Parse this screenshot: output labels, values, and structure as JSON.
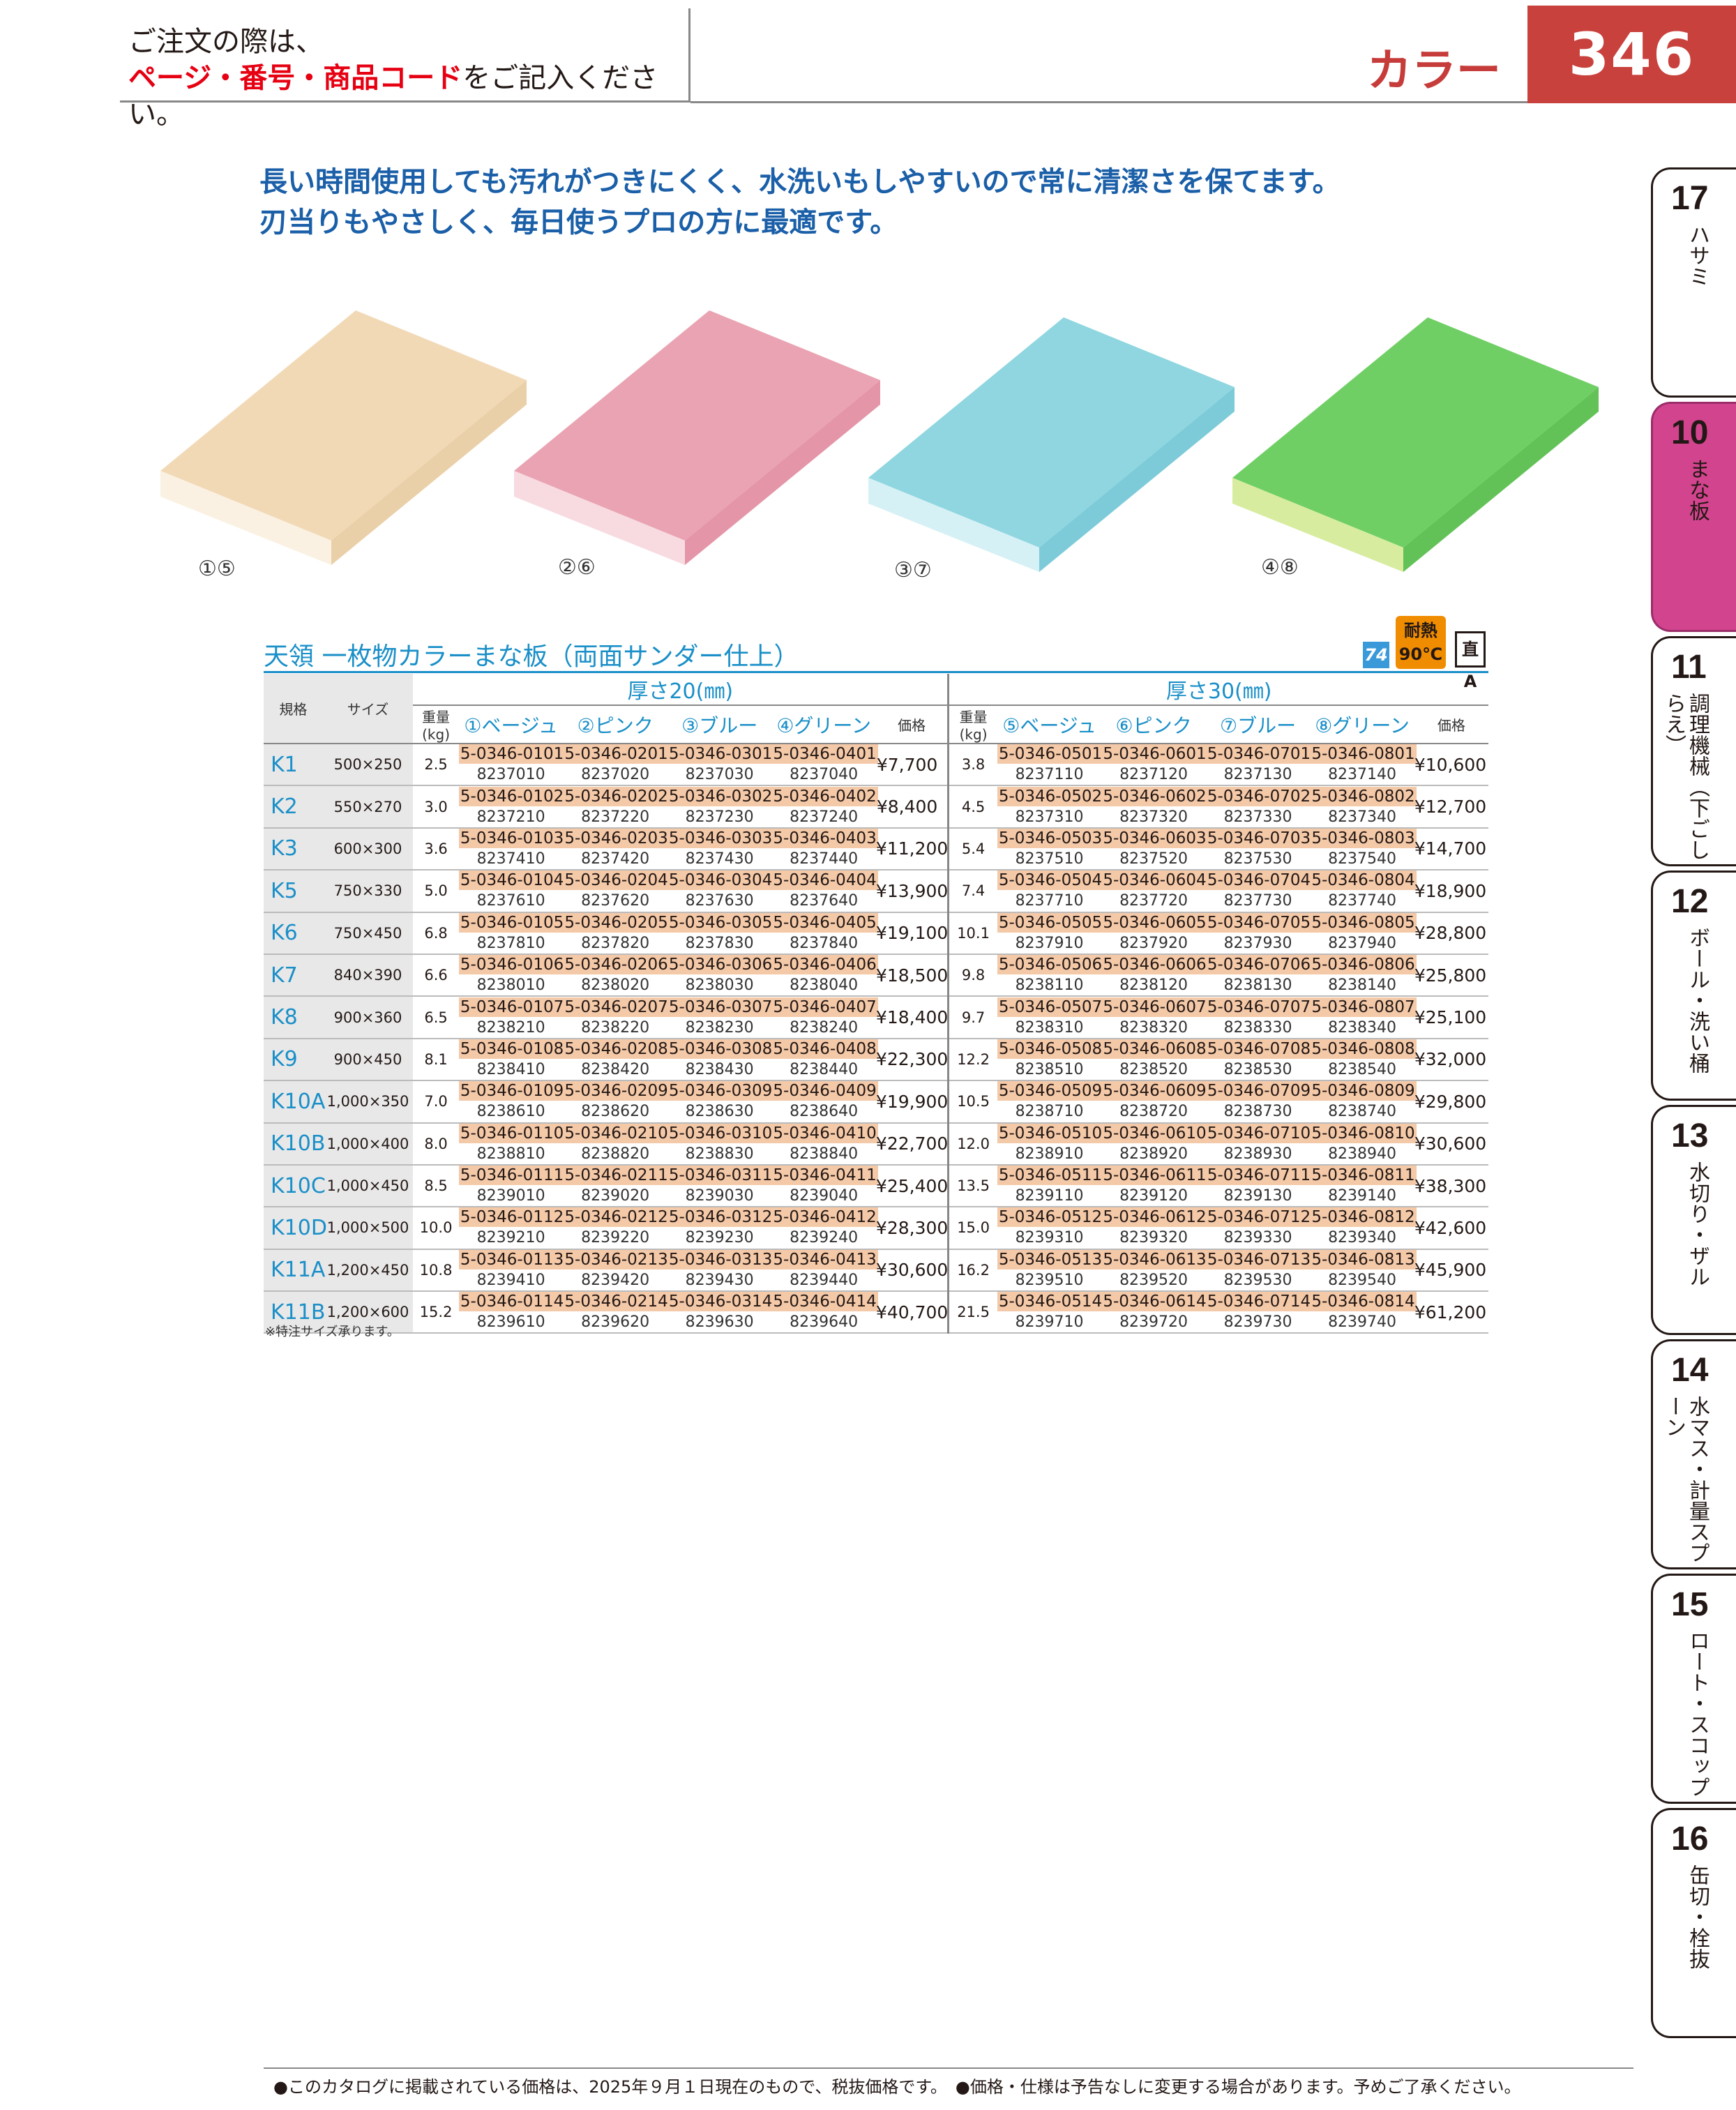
{
  "header": {
    "notice_line1": "ご注文の際は、",
    "notice_red": "ページ・番号・商品コード",
    "notice_rest": "をご記入ください。",
    "category": "カラー",
    "page_number": "346"
  },
  "description": {
    "line1": "長い時間使用しても汚れがつきにくく、水洗いもしやすいので常に清潔さを保てます。",
    "line2": "刃当りもやさしく、毎日使うプロの方に最適です。"
  },
  "images": [
    {
      "label": "①⑤",
      "color": "#f2d9b6"
    },
    {
      "label": "②⑥",
      "color": "#eaa3b2"
    },
    {
      "label": "③⑦",
      "color": "#8fd6e0"
    },
    {
      "label": "④⑧",
      "color": "#6fcf64"
    }
  ],
  "badges": {
    "category_code": "74",
    "heat_line1": "耐熱",
    "heat_line2": "90℃",
    "direct": "直A"
  },
  "product_title": "天領 一枚物カラーまな板（両面サンダー仕上）",
  "table": {
    "group_20": "厚さ20(㎜)",
    "group_30": "厚さ30(㎜)",
    "h_model": "規格",
    "h_size": "サイズ",
    "h_weight": "重量(kg)",
    "h_price": "価格",
    "h_c1": "①ベージュ",
    "h_c2": "②ピンク",
    "h_c3": "③ブルー",
    "h_c4": "④グリーン",
    "h_c5": "⑤ベージュ",
    "h_c6": "⑥ピンク",
    "h_c7": "⑦ブルー",
    "h_c8": "⑧グリーン",
    "rows": [
      {
        "model": "K1",
        "size": "500×250",
        "w20": "2.5",
        "c": [
          [
            "5-0346-0101",
            "8237010"
          ],
          [
            "5-0346-0201",
            "8237020"
          ],
          [
            "5-0346-0301",
            "8237030"
          ],
          [
            "5-0346-0401",
            "8237040"
          ]
        ],
        "p20": "¥7,700",
        "w30": "3.8",
        "d": [
          [
            "5-0346-0501",
            "8237110"
          ],
          [
            "5-0346-0601",
            "8237120"
          ],
          [
            "5-0346-0701",
            "8237130"
          ],
          [
            "5-0346-0801",
            "8237140"
          ]
        ],
        "p30": "¥10,600"
      },
      {
        "model": "K2",
        "size": "550×270",
        "w20": "3.0",
        "c": [
          [
            "5-0346-0102",
            "8237210"
          ],
          [
            "5-0346-0202",
            "8237220"
          ],
          [
            "5-0346-0302",
            "8237230"
          ],
          [
            "5-0346-0402",
            "8237240"
          ]
        ],
        "p20": "¥8,400",
        "w30": "4.5",
        "d": [
          [
            "5-0346-0502",
            "8237310"
          ],
          [
            "5-0346-0602",
            "8237320"
          ],
          [
            "5-0346-0702",
            "8237330"
          ],
          [
            "5-0346-0802",
            "8237340"
          ]
        ],
        "p30": "¥12,700"
      },
      {
        "model": "K3",
        "size": "600×300",
        "w20": "3.6",
        "c": [
          [
            "5-0346-0103",
            "8237410"
          ],
          [
            "5-0346-0203",
            "8237420"
          ],
          [
            "5-0346-0303",
            "8237430"
          ],
          [
            "5-0346-0403",
            "8237440"
          ]
        ],
        "p20": "¥11,200",
        "w30": "5.4",
        "d": [
          [
            "5-0346-0503",
            "8237510"
          ],
          [
            "5-0346-0603",
            "8237520"
          ],
          [
            "5-0346-0703",
            "8237530"
          ],
          [
            "5-0346-0803",
            "8237540"
          ]
        ],
        "p30": "¥14,700"
      },
      {
        "model": "K5",
        "size": "750×330",
        "w20": "5.0",
        "c": [
          [
            "5-0346-0104",
            "8237610"
          ],
          [
            "5-0346-0204",
            "8237620"
          ],
          [
            "5-0346-0304",
            "8237630"
          ],
          [
            "5-0346-0404",
            "8237640"
          ]
        ],
        "p20": "¥13,900",
        "w30": "7.4",
        "d": [
          [
            "5-0346-0504",
            "8237710"
          ],
          [
            "5-0346-0604",
            "8237720"
          ],
          [
            "5-0346-0704",
            "8237730"
          ],
          [
            "5-0346-0804",
            "8237740"
          ]
        ],
        "p30": "¥18,900"
      },
      {
        "model": "K6",
        "size": "750×450",
        "w20": "6.8",
        "c": [
          [
            "5-0346-0105",
            "8237810"
          ],
          [
            "5-0346-0205",
            "8237820"
          ],
          [
            "5-0346-0305",
            "8237830"
          ],
          [
            "5-0346-0405",
            "8237840"
          ]
        ],
        "p20": "¥19,100",
        "w30": "10.1",
        "d": [
          [
            "5-0346-0505",
            "8237910"
          ],
          [
            "5-0346-0605",
            "8237920"
          ],
          [
            "5-0346-0705",
            "8237930"
          ],
          [
            "5-0346-0805",
            "8237940"
          ]
        ],
        "p30": "¥28,800"
      },
      {
        "model": "K7",
        "size": "840×390",
        "w20": "6.6",
        "c": [
          [
            "5-0346-0106",
            "8238010"
          ],
          [
            "5-0346-0206",
            "8238020"
          ],
          [
            "5-0346-0306",
            "8238030"
          ],
          [
            "5-0346-0406",
            "8238040"
          ]
        ],
        "p20": "¥18,500",
        "w30": "9.8",
        "d": [
          [
            "5-0346-0506",
            "8238110"
          ],
          [
            "5-0346-0606",
            "8238120"
          ],
          [
            "5-0346-0706",
            "8238130"
          ],
          [
            "5-0346-0806",
            "8238140"
          ]
        ],
        "p30": "¥25,800"
      },
      {
        "model": "K8",
        "size": "900×360",
        "w20": "6.5",
        "c": [
          [
            "5-0346-0107",
            "8238210"
          ],
          [
            "5-0346-0207",
            "8238220"
          ],
          [
            "5-0346-0307",
            "8238230"
          ],
          [
            "5-0346-0407",
            "8238240"
          ]
        ],
        "p20": "¥18,400",
        "w30": "9.7",
        "d": [
          [
            "5-0346-0507",
            "8238310"
          ],
          [
            "5-0346-0607",
            "8238320"
          ],
          [
            "5-0346-0707",
            "8238330"
          ],
          [
            "5-0346-0807",
            "8238340"
          ]
        ],
        "p30": "¥25,100"
      },
      {
        "model": "K9",
        "size": "900×450",
        "w20": "8.1",
        "c": [
          [
            "5-0346-0108",
            "8238410"
          ],
          [
            "5-0346-0208",
            "8238420"
          ],
          [
            "5-0346-0308",
            "8238430"
          ],
          [
            "5-0346-0408",
            "8238440"
          ]
        ],
        "p20": "¥22,300",
        "w30": "12.2",
        "d": [
          [
            "5-0346-0508",
            "8238510"
          ],
          [
            "5-0346-0608",
            "8238520"
          ],
          [
            "5-0346-0708",
            "8238530"
          ],
          [
            "5-0346-0808",
            "8238540"
          ]
        ],
        "p30": "¥32,000"
      },
      {
        "model": "K10A",
        "size": "1,000×350",
        "w20": "7.0",
        "c": [
          [
            "5-0346-0109",
            "8238610"
          ],
          [
            "5-0346-0209",
            "8238620"
          ],
          [
            "5-0346-0309",
            "8238630"
          ],
          [
            "5-0346-0409",
            "8238640"
          ]
        ],
        "p20": "¥19,900",
        "w30": "10.5",
        "d": [
          [
            "5-0346-0509",
            "8238710"
          ],
          [
            "5-0346-0609",
            "8238720"
          ],
          [
            "5-0346-0709",
            "8238730"
          ],
          [
            "5-0346-0809",
            "8238740"
          ]
        ],
        "p30": "¥29,800"
      },
      {
        "model": "K10B",
        "size": "1,000×400",
        "w20": "8.0",
        "c": [
          [
            "5-0346-0110",
            "8238810"
          ],
          [
            "5-0346-0210",
            "8238820"
          ],
          [
            "5-0346-0310",
            "8238830"
          ],
          [
            "5-0346-0410",
            "8238840"
          ]
        ],
        "p20": "¥22,700",
        "w30": "12.0",
        "d": [
          [
            "5-0346-0510",
            "8238910"
          ],
          [
            "5-0346-0610",
            "8238920"
          ],
          [
            "5-0346-0710",
            "8238930"
          ],
          [
            "5-0346-0810",
            "8238940"
          ]
        ],
        "p30": "¥30,600"
      },
      {
        "model": "K10C",
        "size": "1,000×450",
        "w20": "8.5",
        "c": [
          [
            "5-0346-0111",
            "8239010"
          ],
          [
            "5-0346-0211",
            "8239020"
          ],
          [
            "5-0346-0311",
            "8239030"
          ],
          [
            "5-0346-0411",
            "8239040"
          ]
        ],
        "p20": "¥25,400",
        "w30": "13.5",
        "d": [
          [
            "5-0346-0511",
            "8239110"
          ],
          [
            "5-0346-0611",
            "8239120"
          ],
          [
            "5-0346-0711",
            "8239130"
          ],
          [
            "5-0346-0811",
            "8239140"
          ]
        ],
        "p30": "¥38,300"
      },
      {
        "model": "K10D",
        "size": "1,000×500",
        "w20": "10.0",
        "c": [
          [
            "5-0346-0112",
            "8239210"
          ],
          [
            "5-0346-0212",
            "8239220"
          ],
          [
            "5-0346-0312",
            "8239230"
          ],
          [
            "5-0346-0412",
            "8239240"
          ]
        ],
        "p20": "¥28,300",
        "w30": "15.0",
        "d": [
          [
            "5-0346-0512",
            "8239310"
          ],
          [
            "5-0346-0612",
            "8239320"
          ],
          [
            "5-0346-0712",
            "8239330"
          ],
          [
            "5-0346-0812",
            "8239340"
          ]
        ],
        "p30": "¥42,600"
      },
      {
        "model": "K11A",
        "size": "1,200×450",
        "w20": "10.8",
        "c": [
          [
            "5-0346-0113",
            "8239410"
          ],
          [
            "5-0346-0213",
            "8239420"
          ],
          [
            "5-0346-0313",
            "8239430"
          ],
          [
            "5-0346-0413",
            "8239440"
          ]
        ],
        "p20": "¥30,600",
        "w30": "16.2",
        "d": [
          [
            "5-0346-0513",
            "8239510"
          ],
          [
            "5-0346-0613",
            "8239520"
          ],
          [
            "5-0346-0713",
            "8239530"
          ],
          [
            "5-0346-0813",
            "8239540"
          ]
        ],
        "p30": "¥45,900"
      },
      {
        "model": "K11B",
        "size": "1,200×600",
        "w20": "15.2",
        "c": [
          [
            "5-0346-0114",
            "8239610"
          ],
          [
            "5-0346-0214",
            "8239620"
          ],
          [
            "5-0346-0314",
            "8239630"
          ],
          [
            "5-0346-0414",
            "8239640"
          ]
        ],
        "p20": "¥40,700",
        "w30": "21.5",
        "d": [
          [
            "5-0346-0514",
            "8239710"
          ],
          [
            "5-0346-0614",
            "8239720"
          ],
          [
            "5-0346-0714",
            "8239730"
          ],
          [
            "5-0346-0814",
            "8239740"
          ]
        ],
        "p30": "¥61,200"
      }
    ]
  },
  "footnote": "※特注サイズ承ります。",
  "side_tabs": [
    {
      "num": "17",
      "label": "ハサミ",
      "active": false
    },
    {
      "num": "10",
      "label": "まな板",
      "active": true
    },
    {
      "num": "11",
      "label": "調理機械（下ごしらえ）",
      "active": false
    },
    {
      "num": "12",
      "label": "ボール・洗い桶",
      "active": false
    },
    {
      "num": "13",
      "label": "水切り・ザル",
      "active": false
    },
    {
      "num": "14",
      "label": "水マス・計量スプーン",
      "active": false
    },
    {
      "num": "15",
      "label": "ロート・スコップ",
      "active": false
    },
    {
      "num": "16",
      "label": "缶切・栓抜",
      "active": false
    }
  ],
  "footer": "●このカタログに掲載されている価格は、2025年９月１日現在のもので、税抜価格です。　●価格・仕様は予告なしに変更する場合があります。予めご了承ください。"
}
